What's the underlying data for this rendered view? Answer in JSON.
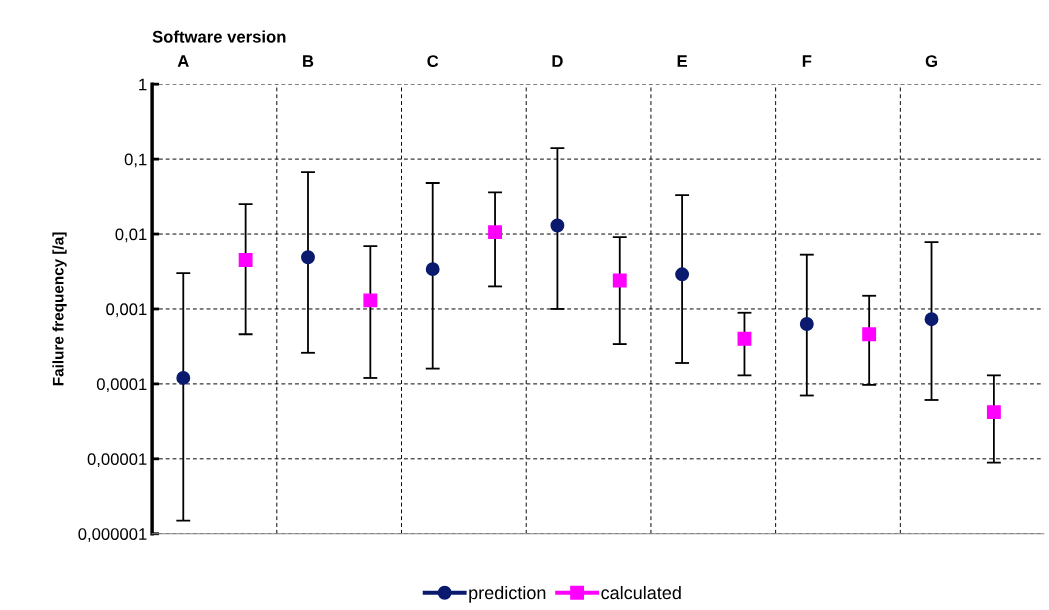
{
  "chart_data": {
    "type": "scatter",
    "xlabel": "Software version",
    "ylabel": "Failure frequency [/a]",
    "categories": [
      "A",
      null,
      "B",
      null,
      "C",
      null,
      "D",
      null,
      "E",
      null,
      "F",
      null,
      "G",
      null
    ],
    "log": "y",
    "ylim": [
      1e-06,
      1
    ],
    "yticks": [
      {
        "value": 1e-06,
        "label": "0,000001"
      },
      {
        "value": 1e-05,
        "label": "0,00001"
      },
      {
        "value": 0.0001,
        "label": "0,0001"
      },
      {
        "value": 0.001,
        "label": "0,001"
      },
      {
        "value": 0.01,
        "label": "0,01"
      },
      {
        "value": 0.1,
        "label": "0,1"
      },
      1
    ],
    "grid": true,
    "legend": "bottom",
    "series": [
      {
        "name": "prediction",
        "color": "#0a1a6e",
        "marker": "circle",
        "values": [
          0.00012,
          null,
          0.0049,
          null,
          0.0034,
          null,
          0.013,
          null,
          0.0029,
          null,
          0.00063,
          null,
          0.00073,
          null
        ],
        "errors": [
          [
            1.5e-06,
            0.003
          ],
          null,
          [
            0.00026,
            0.067
          ],
          null,
          [
            0.00016,
            0.048
          ],
          null,
          [
            0.001,
            0.14
          ],
          null,
          [
            0.00019,
            0.033
          ],
          null,
          [
            7e-05,
            0.0053
          ],
          null,
          [
            6.1e-05,
            0.0078
          ],
          null
        ]
      },
      {
        "name": "calculated",
        "color": "#ff00ff",
        "marker": "square",
        "values": [
          null,
          0.0045,
          null,
          0.0013,
          null,
          0.0106,
          null,
          0.0024,
          null,
          0.0004,
          null,
          0.00046,
          null,
          4.2e-05
        ],
        "errors": [
          null,
          [
            0.00046,
            0.025
          ],
          null,
          [
            0.00012,
            0.0069
          ],
          null,
          [
            0.002,
            0.036
          ],
          null,
          [
            0.00034,
            0.0091
          ],
          null,
          [
            0.00013,
            0.00089
          ],
          null,
          [
            9.7e-05,
            0.0015
          ],
          null,
          [
            8.9e-06,
            0.00013
          ]
        ]
      }
    ]
  }
}
